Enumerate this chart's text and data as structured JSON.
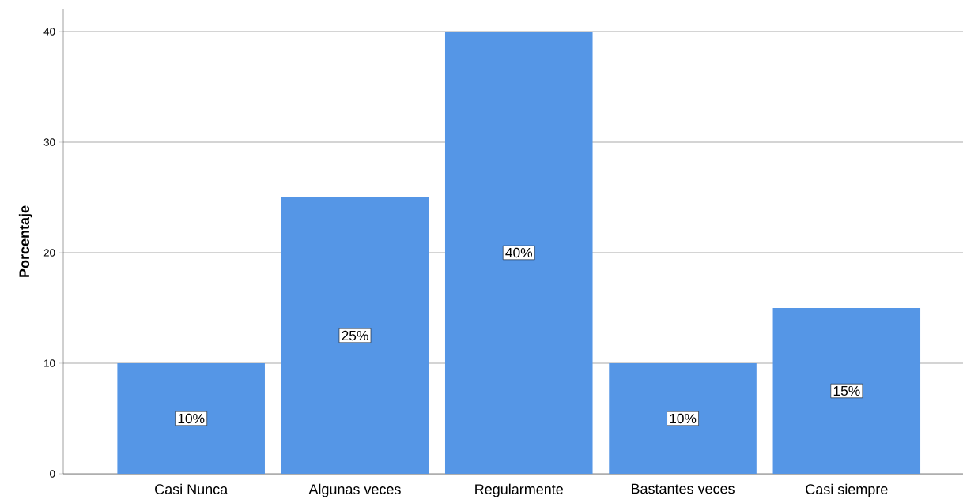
{
  "chart_data": {
    "type": "bar",
    "ylabel": "Porcentaje",
    "categories": [
      "Casi Nunca",
      "Algunas veces",
      "Regularmente",
      "Bastantes veces",
      "Casi siempre"
    ],
    "values": [
      10,
      25,
      40,
      10,
      15
    ],
    "value_labels": [
      "10%",
      "25%",
      "40%",
      "10%",
      "15%"
    ],
    "color": "#5596e6",
    "ylim": [
      0,
      42
    ],
    "yticks": [
      0,
      10,
      20,
      30,
      40
    ],
    "grid": "y"
  }
}
